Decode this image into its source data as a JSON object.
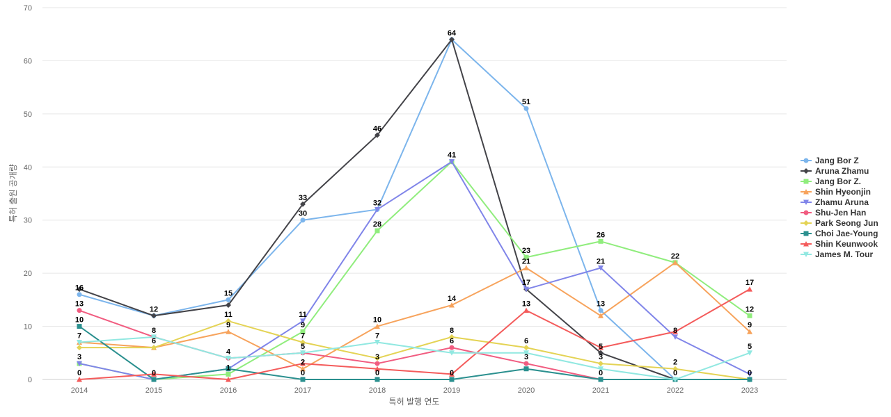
{
  "chart_data": {
    "type": "line",
    "title": "",
    "xlabel": "특허 발행 연도",
    "ylabel": "특허 출원 공개량",
    "ylim": [
      0,
      70
    ],
    "y_ticks": [
      0,
      10,
      20,
      30,
      40,
      50,
      60,
      70
    ],
    "categories": [
      "2014",
      "2015",
      "2016",
      "2017",
      "2018",
      "2019",
      "2020",
      "2021",
      "2022",
      "2023"
    ],
    "grid": true,
    "legend_position": "right",
    "series": [
      {
        "name": "Jang Bor Z",
        "color": "#7cb5ec",
        "marker": "circle",
        "values": [
          16,
          12,
          15,
          30,
          32,
          64,
          51,
          13,
          0,
          0
        ]
      },
      {
        "name": "Aruna Zhamu",
        "color": "#434348",
        "marker": "diamond",
        "values": [
          17,
          12,
          14,
          33,
          46,
          64,
          17,
          5,
          0,
          0
        ]
      },
      {
        "name": "Jang Bor Z.",
        "color": "#90ed7d",
        "marker": "square",
        "values": [
          3,
          0,
          1,
          9,
          28,
          41,
          23,
          26,
          22,
          12
        ]
      },
      {
        "name": "Shin Hyeonjin",
        "color": "#f7a35c",
        "marker": "triangle",
        "values": [
          7,
          6,
          9,
          2,
          10,
          14,
          21,
          12,
          22,
          9
        ]
      },
      {
        "name": "Zhamu Aruna",
        "color": "#8085e9",
        "marker": "triangle-down",
        "values": [
          3,
          0,
          2,
          11,
          32,
          41,
          17,
          21,
          8,
          1
        ]
      },
      {
        "name": "Shu-Jen Han",
        "color": "#f15c80",
        "marker": "circle",
        "values": [
          13,
          8,
          4,
          5,
          3,
          6,
          3,
          0,
          0,
          0
        ]
      },
      {
        "name": "Park Seong Jun",
        "color": "#e4d354",
        "marker": "diamond",
        "values": [
          6,
          6,
          11,
          7,
          4,
          8,
          6,
          3,
          2,
          0
        ]
      },
      {
        "name": "Choi Jae-Young",
        "color": "#2b908f",
        "marker": "square",
        "values": [
          10,
          0,
          2,
          0,
          0,
          0,
          2,
          0,
          0,
          0
        ]
      },
      {
        "name": "Shin Keunwook",
        "color": "#f45b5b",
        "marker": "triangle",
        "values": [
          0,
          1,
          0,
          3,
          2,
          1,
          13,
          6,
          9,
          17
        ]
      },
      {
        "name": "James M. Tour",
        "color": "#91e8e1",
        "marker": "triangle-down",
        "values": [
          7,
          8,
          4,
          5,
          7,
          5,
          5,
          2,
          0,
          5
        ]
      }
    ],
    "data_labels": [
      {
        "x": "2014",
        "value": 16
      },
      {
        "x": "2014",
        "value": 13
      },
      {
        "x": "2014",
        "value": 10
      },
      {
        "x": "2014",
        "value": 7
      },
      {
        "x": "2014",
        "value": 3
      },
      {
        "x": "2014",
        "value": 0
      },
      {
        "x": "2015",
        "value": 12
      },
      {
        "x": "2015",
        "value": 8
      },
      {
        "x": "2015",
        "value": 6
      },
      {
        "x": "2015",
        "value": 0
      },
      {
        "x": "2016",
        "value": 15
      },
      {
        "x": "2016",
        "value": 11
      },
      {
        "x": "2016",
        "value": 9
      },
      {
        "x": "2016",
        "value": 4
      },
      {
        "x": "2016",
        "value": 1
      },
      {
        "x": "2017",
        "value": 33
      },
      {
        "x": "2017",
        "value": 30
      },
      {
        "x": "2017",
        "value": 11
      },
      {
        "x": "2017",
        "value": 9
      },
      {
        "x": "2017",
        "value": 7
      },
      {
        "x": "2017",
        "value": 5
      },
      {
        "x": "2017",
        "value": 2
      },
      {
        "x": "2017",
        "value": 0
      },
      {
        "x": "2018",
        "value": 46
      },
      {
        "x": "2018",
        "value": 32
      },
      {
        "x": "2018",
        "value": 28
      },
      {
        "x": "2018",
        "value": 10
      },
      {
        "x": "2018",
        "value": 7
      },
      {
        "x": "2018",
        "value": 3
      },
      {
        "x": "2018",
        "value": 0
      },
      {
        "x": "2019",
        "value": 64
      },
      {
        "x": "2019",
        "value": 41
      },
      {
        "x": "2019",
        "value": 14
      },
      {
        "x": "2019",
        "value": 8
      },
      {
        "x": "2019",
        "value": 6
      },
      {
        "x": "2019",
        "value": 0
      },
      {
        "x": "2020",
        "value": 51
      },
      {
        "x": "2020",
        "value": 23
      },
      {
        "x": "2020",
        "value": 21
      },
      {
        "x": "2020",
        "value": 17
      },
      {
        "x": "2020",
        "value": 13
      },
      {
        "x": "2020",
        "value": 6
      },
      {
        "x": "2020",
        "value": 3
      },
      {
        "x": "2021",
        "value": 26
      },
      {
        "x": "2021",
        "value": 21
      },
      {
        "x": "2021",
        "value": 13
      },
      {
        "x": "2021",
        "value": 5
      },
      {
        "x": "2021",
        "value": 3
      },
      {
        "x": "2021",
        "value": 0
      },
      {
        "x": "2022",
        "value": 22
      },
      {
        "x": "2022",
        "value": 8
      },
      {
        "x": "2022",
        "value": 2
      },
      {
        "x": "2022",
        "value": 0
      },
      {
        "x": "2023",
        "value": 17
      },
      {
        "x": "2023",
        "value": 12
      },
      {
        "x": "2023",
        "value": 9
      },
      {
        "x": "2023",
        "value": 5
      },
      {
        "x": "2023",
        "value": 0
      }
    ]
  }
}
